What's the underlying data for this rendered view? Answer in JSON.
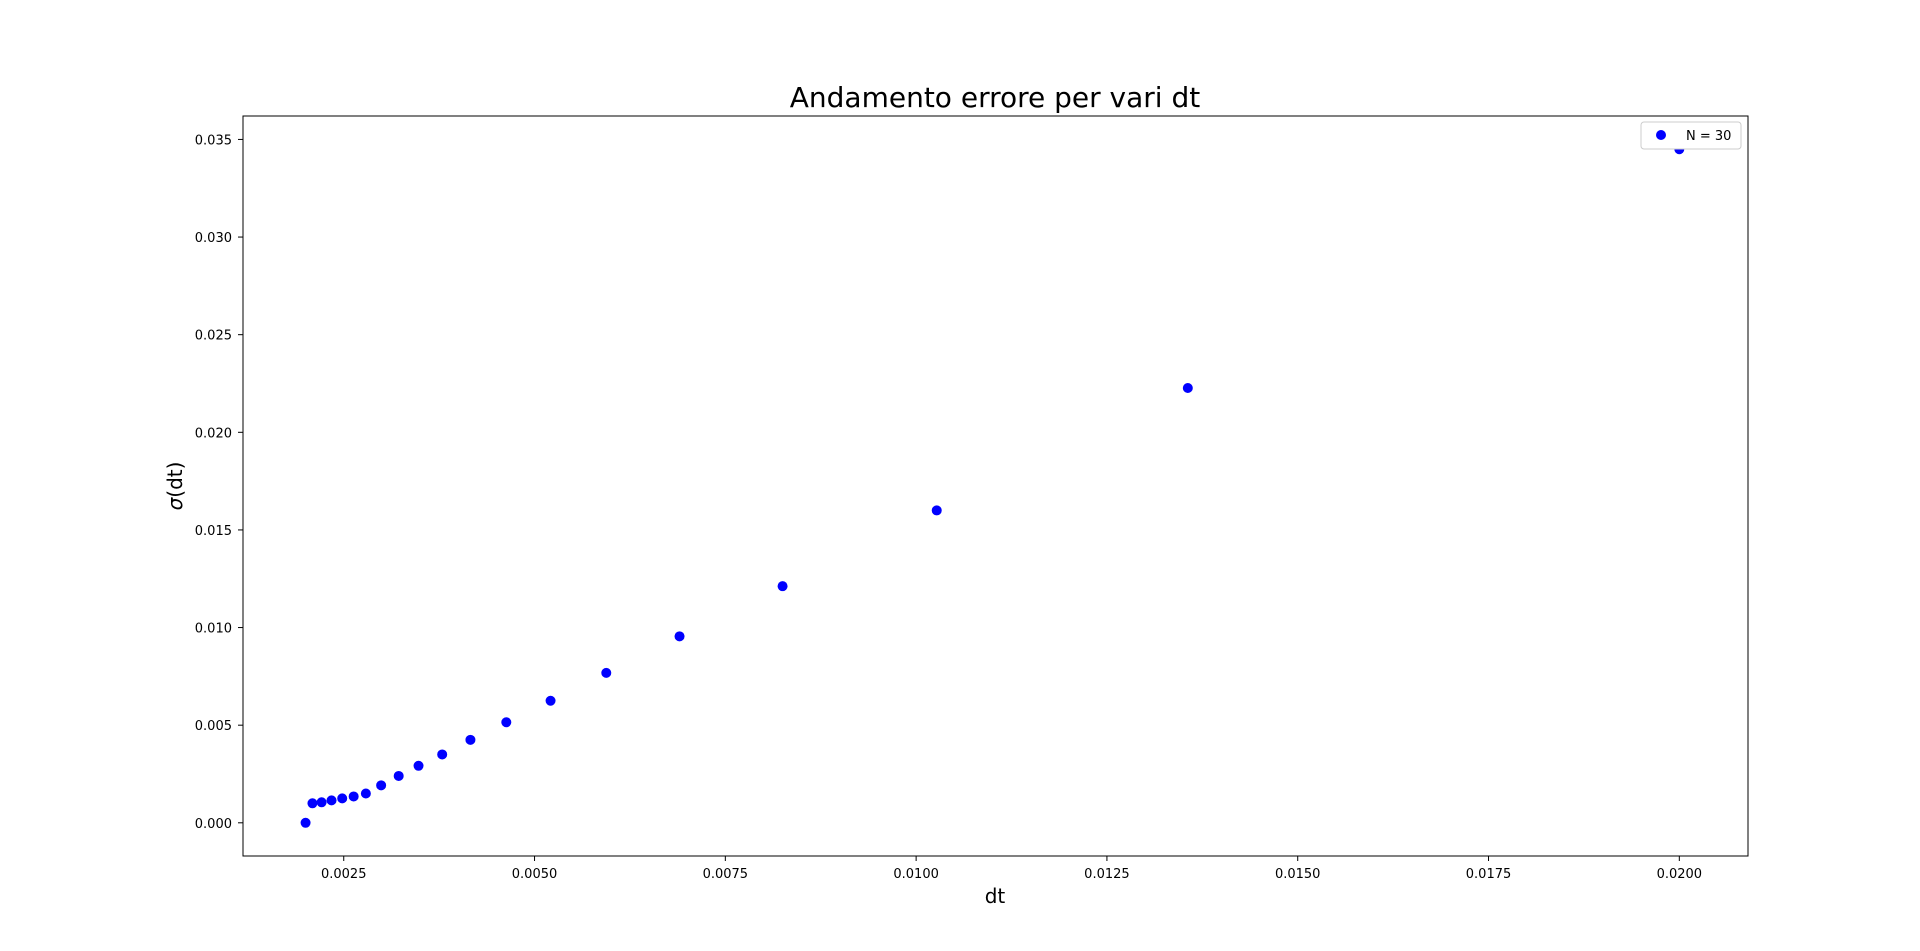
{
  "chart_data": {
    "type": "scatter",
    "title": "Andamento errore per vari dt",
    "xlabel": "dt",
    "ylabel_symbol": "σ",
    "ylabel_rest": "(dt)",
    "xlim": [
      0.00118,
      0.0209
    ],
    "ylim": [
      -0.0017,
      0.0362
    ],
    "xticks": [
      0.0025,
      0.005,
      0.0075,
      0.01,
      0.0125,
      0.015,
      0.0175,
      0.02
    ],
    "xtick_labels": [
      "0.0025",
      "0.0050",
      "0.0075",
      "0.0100",
      "0.0125",
      "0.0150",
      "0.0175",
      "0.0200"
    ],
    "yticks": [
      0.0,
      0.005,
      0.01,
      0.015,
      0.02,
      0.025,
      0.03,
      0.035
    ],
    "ytick_labels": [
      "0.000",
      "0.005",
      "0.010",
      "0.015",
      "0.020",
      "0.025",
      "0.030",
      "0.035"
    ],
    "grid": false,
    "legend_position": "top-right",
    "series": [
      {
        "name": "N = 30",
        "color": "#0000ff",
        "marker": "circle",
        "x": [
          0.002,
          0.00209,
          0.00221,
          0.00234,
          0.00248,
          0.00263,
          0.00279,
          0.00299,
          0.00322,
          0.00348,
          0.00379,
          0.00416,
          0.00463,
          0.00521,
          0.00594,
          0.0069,
          0.00825,
          0.01027,
          0.01356,
          0.02
        ],
        "y": [
          0.0,
          0.001,
          0.00105,
          0.00115,
          0.00125,
          0.00135,
          0.0015,
          0.00192,
          0.0024,
          0.00292,
          0.0035,
          0.00425,
          0.00515,
          0.00625,
          0.00768,
          0.00955,
          0.01212,
          0.016,
          0.02227,
          0.0345
        ]
      }
    ]
  }
}
